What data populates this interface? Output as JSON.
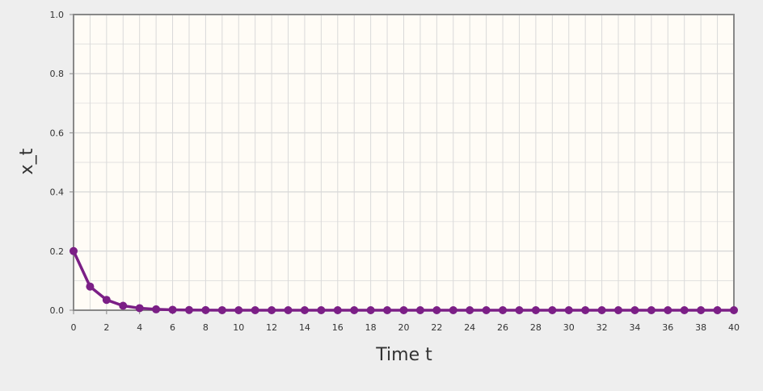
{
  "chart_data": {
    "type": "line",
    "xlabel": "Time t",
    "ylabel": "x_t",
    "xlim": [
      0,
      40
    ],
    "ylim": [
      0,
      1
    ],
    "x_ticks": [
      0,
      2,
      4,
      6,
      8,
      10,
      12,
      14,
      16,
      18,
      20,
      22,
      24,
      26,
      28,
      30,
      32,
      34,
      36,
      38,
      40
    ],
    "x_tick_labels": [
      "0",
      "2",
      "4",
      "6",
      "8",
      "10",
      "12",
      "14",
      "16",
      "18",
      "20",
      "22",
      "24",
      "26",
      "28",
      "30",
      "32",
      "34",
      "36",
      "38",
      "40"
    ],
    "y_ticks": [
      0,
      0.2,
      0.4,
      0.6,
      0.8,
      1.0
    ],
    "y_tick_labels": [
      "0.0",
      "0.2",
      "0.4",
      "0.6",
      "0.8",
      "1.0"
    ],
    "grid": true,
    "series": [
      {
        "color": "#7b1f86",
        "x": [
          0,
          1,
          2,
          3,
          4,
          5,
          6,
          7,
          8,
          9,
          10,
          11,
          12,
          13,
          14,
          15,
          16,
          17,
          18,
          19,
          20,
          21,
          22,
          23,
          24,
          25,
          26,
          27,
          28,
          29,
          30,
          31,
          32,
          33,
          34,
          35,
          36,
          37,
          38,
          39,
          40
        ],
        "values": [
          0.2,
          0.08,
          0.035,
          0.015,
          0.007,
          0.003,
          0.0015,
          0.0007,
          0.0003,
          0.0001,
          0,
          0,
          0,
          0,
          0,
          0,
          0,
          0,
          0,
          0,
          0,
          0,
          0,
          0,
          0,
          0,
          0,
          0,
          0,
          0,
          0,
          0,
          0,
          0,
          0,
          0,
          0,
          0,
          0,
          0,
          0
        ]
      }
    ]
  },
  "colors": {
    "page_background": "#eeeeee",
    "plot_background": "#fffcf6",
    "grid": "#d9d9d9",
    "axis": "#888888",
    "series": "#7b1f86"
  }
}
